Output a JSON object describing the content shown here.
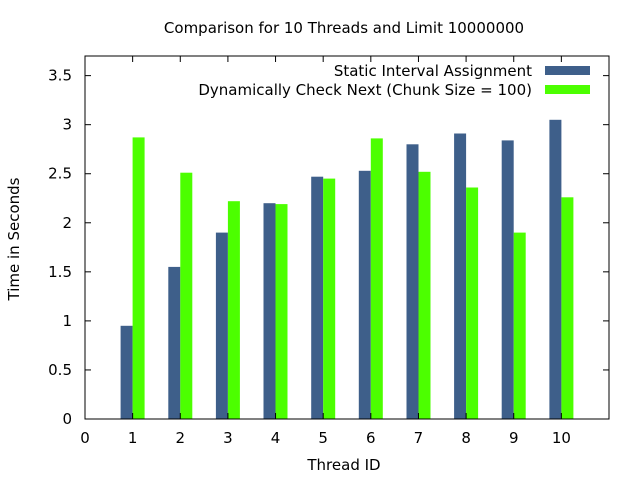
{
  "chart_data": {
    "type": "bar",
    "title": "Comparison for 10 Threads and Limit 10000000",
    "xlabel": "Thread ID",
    "ylabel": "Time in Seconds",
    "xlim": [
      0,
      11
    ],
    "ylim": [
      0,
      3.7
    ],
    "xticks": [
      0,
      1,
      2,
      3,
      4,
      5,
      6,
      7,
      8,
      9,
      10
    ],
    "yticks": [
      0,
      0.5,
      1,
      1.5,
      2,
      2.5,
      3,
      3.5
    ],
    "ytick_labels": [
      "0",
      "0.5",
      "1",
      "1.5",
      "2",
      "2.5",
      "3",
      "3.5"
    ],
    "categories": [
      1,
      2,
      3,
      4,
      5,
      6,
      7,
      8,
      9,
      10
    ],
    "series": [
      {
        "name": "Static Interval Assignment",
        "color": "#3e5f8a",
        "values": [
          0.95,
          1.55,
          1.9,
          2.2,
          2.47,
          2.53,
          2.8,
          2.91,
          2.84,
          3.05
        ]
      },
      {
        "name": "Dynamically Check Next (Chunk Size = 100)",
        "color": "#4cff00",
        "values": [
          2.87,
          2.51,
          2.22,
          2.19,
          2.45,
          2.86,
          2.52,
          2.36,
          1.9,
          2.26
        ]
      }
    ],
    "grid": false,
    "legend_position": "top-right"
  }
}
